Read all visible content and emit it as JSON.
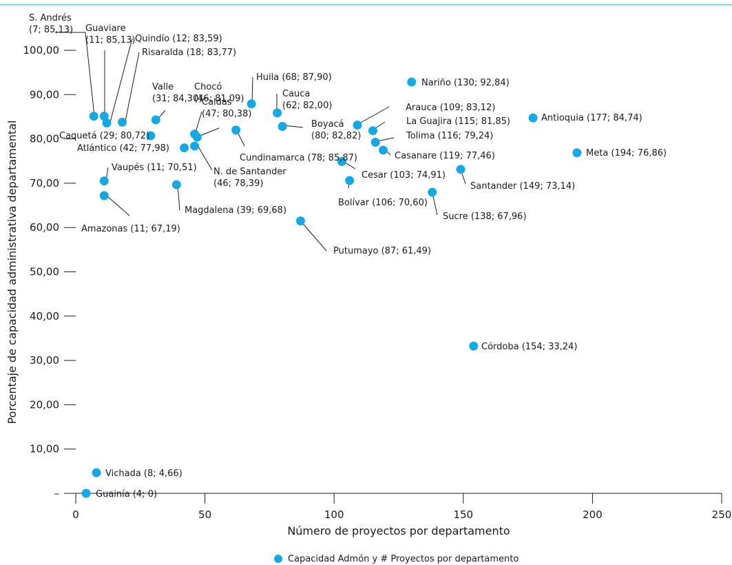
{
  "chart_data": {
    "type": "scatter",
    "xlabel": "Número de proyectos por departamento",
    "ylabel": "Porcentaje de capacidad administrativa departamental",
    "xlim": [
      0,
      250
    ],
    "ylim": [
      0,
      100
    ],
    "x_ticks": [
      {
        "value": 0,
        "label": "0"
      },
      {
        "value": 50,
        "label": "50"
      },
      {
        "value": 100,
        "label": "100"
      },
      {
        "value": 150,
        "label": "150"
      },
      {
        "value": 200,
        "label": "200"
      },
      {
        "value": 250,
        "label": "250"
      }
    ],
    "y_ticks": [
      {
        "value": 0,
        "label": "–"
      },
      {
        "value": 10,
        "label": "10,00"
      },
      {
        "value": 20,
        "label": "20,00"
      },
      {
        "value": 30,
        "label": "30,00"
      },
      {
        "value": 40,
        "label": "40,00"
      },
      {
        "value": 50,
        "label": "50,00"
      },
      {
        "value": 60,
        "label": "60,00"
      },
      {
        "value": 70,
        "label": "70,00"
      },
      {
        "value": 80,
        "label": "80,00"
      },
      {
        "value": 90,
        "label": "90,00"
      },
      {
        "value": 100,
        "label": "100,00"
      }
    ],
    "grid": false,
    "legend": {
      "position": "bottom-center"
    },
    "point_color": "#1aa7e0",
    "series": [
      {
        "name": "Capacidad Admón y # Proyectos por departamento",
        "points": [
          {
            "x": 7,
            "y": 85.13,
            "label": [
              "S. Andrés",
              "(7; 85,13)"
            ]
          },
          {
            "x": 11,
            "y": 85.13,
            "label": [
              "Guaviare",
              "(11; 85,13)"
            ]
          },
          {
            "x": 12,
            "y": 83.59,
            "label": [
              "Quindío (12; 83,59)"
            ]
          },
          {
            "x": 18,
            "y": 83.77,
            "label": [
              "Risaralda (18; 83,77)"
            ]
          },
          {
            "x": 31,
            "y": 84.3,
            "label": [
              "Valle",
              "(31; 84,30)"
            ]
          },
          {
            "x": 29,
            "y": 80.72,
            "label": [
              "Caquetá (29; 80,72)"
            ]
          },
          {
            "x": 42,
            "y": 77.98,
            "label": [
              "Atlántico (42; 77,98)"
            ]
          },
          {
            "x": 46,
            "y": 81.09,
            "label": [
              "Chocó",
              "(46; 81,09)"
            ]
          },
          {
            "x": 47,
            "y": 80.38,
            "label": [
              "Caldas",
              "(47; 80,38)"
            ]
          },
          {
            "x": 46,
            "y": 78.39,
            "label": [
              "N. de Santander",
              "(46; 78,39)"
            ]
          },
          {
            "x": 68,
            "y": 87.9,
            "label": [
              "Huila (68; 87,90)"
            ]
          },
          {
            "x": 62,
            "y": 82.0,
            "label": [
              "Cauca",
              "(62; 82,00)"
            ]
          },
          {
            "x": 78,
            "y": 85.87,
            "label": [
              "Cundinamarca (78; 85,87)"
            ]
          },
          {
            "x": 80,
            "y": 82.82,
            "label": [
              "Boyacá",
              "(80; 82,82)"
            ]
          },
          {
            "x": 130,
            "y": 92.84,
            "label": [
              "Nariño (130; 92,84)"
            ]
          },
          {
            "x": 109,
            "y": 83.12,
            "label": [
              "Arauca (109; 83,12)"
            ]
          },
          {
            "x": 115,
            "y": 81.85,
            "label": [
              "La Guajira (115; 81,85)"
            ]
          },
          {
            "x": 116,
            "y": 79.24,
            "label": [
              "Tolima (116; 79,24)"
            ]
          },
          {
            "x": 119,
            "y": 77.46,
            "label": [
              "Casanare (119; 77,46)"
            ]
          },
          {
            "x": 177,
            "y": 84.74,
            "label": [
              "Antioquia (177; 84,74)"
            ]
          },
          {
            "x": 194,
            "y": 76.86,
            "label": [
              "Meta (194; 76,86)"
            ]
          },
          {
            "x": 103,
            "y": 74.91,
            "label": [
              "Cesar (103; 74,91)"
            ]
          },
          {
            "x": 149,
            "y": 73.14,
            "label": [
              "Santander (149; 73,14)"
            ]
          },
          {
            "x": 106,
            "y": 70.6,
            "label": [
              "Bolívar (106; 70,60)"
            ]
          },
          {
            "x": 138,
            "y": 67.96,
            "label": [
              "Sucre (138; 67,96)"
            ]
          },
          {
            "x": 11,
            "y": 70.51,
            "label": [
              "Vaupés (11; 70,51)"
            ]
          },
          {
            "x": 11,
            "y": 67.19,
            "label": [
              "Amazonas (11; 67,19)"
            ]
          },
          {
            "x": 39,
            "y": 69.68,
            "label": [
              "Magdalena (39; 69,68)"
            ]
          },
          {
            "x": 87,
            "y": 61.49,
            "label": [
              "Putumayo (87; 61,49)"
            ]
          },
          {
            "x": 154,
            "y": 33.24,
            "label": [
              "Córdoba (154; 33,24)"
            ]
          },
          {
            "x": 8,
            "y": 4.66,
            "label": [
              "Vichada (8; 4,66)"
            ]
          },
          {
            "x": 4,
            "y": 0,
            "label": [
              "Guainía (4; 0)"
            ]
          }
        ]
      }
    ]
  }
}
